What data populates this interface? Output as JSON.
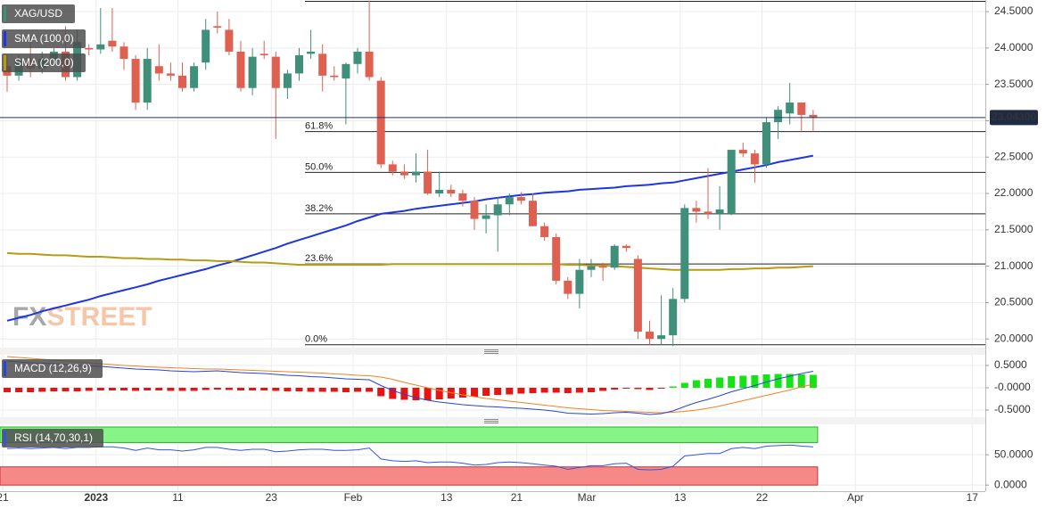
{
  "chart_data": {
    "type": "candlestick",
    "symbol": "XAG/USD",
    "watermark": [
      "FX",
      "STREET"
    ],
    "categories": [
      "21",
      null,
      null,
      null,
      null,
      null,
      null,
      null,
      "2023",
      null,
      null,
      null,
      null,
      null,
      null,
      "11",
      null,
      null,
      null,
      null,
      null,
      null,
      null,
      "23",
      null,
      null,
      null,
      null,
      null,
      null,
      "Feb",
      null,
      null,
      null,
      null,
      null,
      null,
      null,
      "13",
      null,
      null,
      null,
      null,
      null,
      "21",
      null,
      null,
      null,
      null,
      null,
      "Mar",
      null,
      null,
      null,
      null,
      null,
      null,
      null,
      "13",
      null,
      null,
      null,
      null,
      null,
      null,
      "22",
      null,
      null,
      null,
      null
    ],
    "future_categories": [
      null,
      null,
      null,
      "Apr",
      null,
      null,
      null,
      null,
      null,
      null,
      null,
      null,
      null,
      "17"
    ],
    "open": [
      23.75,
      23.62,
      23.83,
      23.72,
      23.85,
      23.95,
      23.6,
      24.0,
      23.98,
      24.1,
      24.02,
      23.85,
      23.25,
      23.75,
      23.65,
      23.62,
      23.45,
      23.8,
      24.3,
      24.25,
      23.95,
      23.45,
      23.92,
      23.88,
      23.45,
      23.65,
      23.92,
      23.92,
      23.62,
      23.58,
      23.78,
      23.95,
      23.55,
      22.4,
      22.3,
      22.25,
      22.3,
      22.0,
      22.05,
      22.0,
      21.9,
      21.65,
      21.7,
      21.85,
      21.95,
      21.9,
      21.55,
      21.4,
      20.8,
      20.62,
      20.95,
      21.0,
      20.98,
      21.28,
      21.1,
      20.1,
      20.0,
      20.05,
      20.55,
      21.8,
      21.75,
      21.72,
      21.72,
      22.6,
      22.55,
      22.4,
      22.98,
      23.1,
      23.25,
      23.08
    ],
    "high": [
      23.92,
      23.9,
      24.15,
      23.95,
      24.0,
      24.3,
      24.25,
      24.05,
      24.55,
      24.55,
      24.08,
      23.9,
      24.0,
      24.05,
      23.8,
      23.8,
      23.8,
      24.4,
      24.5,
      24.4,
      24.1,
      24.0,
      24.1,
      23.95,
      23.7,
      24.0,
      24.25,
      24.05,
      23.75,
      23.8,
      24.0,
      24.65,
      23.6,
      22.45,
      22.4,
      22.55,
      22.6,
      22.3,
      22.12,
      22.05,
      21.95,
      21.85,
      21.95,
      22.0,
      22.02,
      22.0,
      21.6,
      21.45,
      20.85,
      21.1,
      21.1,
      21.05,
      21.3,
      21.3,
      21.15,
      20.25,
      20.6,
      20.7,
      21.85,
      21.9,
      22.35,
      22.1,
      22.6,
      22.7,
      22.6,
      23.05,
      23.2,
      23.52,
      23.25,
      23.15
    ],
    "low": [
      23.4,
      23.55,
      23.6,
      23.65,
      23.8,
      23.55,
      23.55,
      23.9,
      23.92,
      23.95,
      23.7,
      23.15,
      23.15,
      23.55,
      23.55,
      23.4,
      23.4,
      23.7,
      24.2,
      23.9,
      23.4,
      23.35,
      23.85,
      22.75,
      23.3,
      23.55,
      23.85,
      23.4,
      23.55,
      22.95,
      23.65,
      23.55,
      22.35,
      22.25,
      22.2,
      22.15,
      21.98,
      21.95,
      21.95,
      21.82,
      21.5,
      21.45,
      21.2,
      21.7,
      21.85,
      21.55,
      21.35,
      20.75,
      20.55,
      20.42,
      20.85,
      20.8,
      20.95,
      21.2,
      20.0,
      19.92,
      19.92,
      19.9,
      20.5,
      21.6,
      21.65,
      21.5,
      21.7,
      22.5,
      22.15,
      22.35,
      22.75,
      22.95,
      22.85,
      22.85
    ],
    "close": [
      23.62,
      23.83,
      23.72,
      23.85,
      23.95,
      23.6,
      24.08,
      23.98,
      24.05,
      24.02,
      23.85,
      23.25,
      23.85,
      23.65,
      23.62,
      23.45,
      23.75,
      24.25,
      24.28,
      23.95,
      23.45,
      23.88,
      23.9,
      23.45,
      23.65,
      23.9,
      23.95,
      23.62,
      23.6,
      23.78,
      23.95,
      23.6,
      22.4,
      22.3,
      22.25,
      22.3,
      22.0,
      22.05,
      22.0,
      21.9,
      21.65,
      21.7,
      21.85,
      21.95,
      21.9,
      21.55,
      21.4,
      20.8,
      20.62,
      20.95,
      21.0,
      20.98,
      21.28,
      21.25,
      20.1,
      20.0,
      20.05,
      20.55,
      21.8,
      21.75,
      21.72,
      21.78,
      22.6,
      22.55,
      22.4,
      22.98,
      23.15,
      23.25,
      23.08,
      23.04
    ],
    "up_color": "#3f8f7a",
    "down_color": "#dd6050",
    "ylim": [
      19.88,
      24.66
    ],
    "yticks": [
      {
        "value": 24.5,
        "label": "24.5000"
      },
      {
        "value": 24.0,
        "label": "24.0000"
      },
      {
        "value": 23.5,
        "label": "23.5000"
      },
      {
        "value": 23.0,
        "label": "23.0000"
      },
      {
        "value": 22.5,
        "label": "22.5000"
      },
      {
        "value": 22.0,
        "label": "22.0000"
      },
      {
        "value": 21.5,
        "label": "21.5000"
      },
      {
        "value": 21.0,
        "label": "21.0000"
      },
      {
        "value": 20.5,
        "label": "20.5000"
      },
      {
        "value": 20.0,
        "label": "20.0000"
      }
    ],
    "grid": true,
    "last_price": {
      "value": 23.043,
      "label": "23.04300"
    },
    "series": [
      {
        "name": "SMA (100,0)",
        "color": "#1d36e2",
        "values": [
          20.25,
          20.29,
          20.33,
          20.38,
          20.42,
          20.46,
          20.5,
          20.54,
          20.59,
          20.63,
          20.67,
          20.71,
          20.75,
          20.8,
          20.84,
          20.88,
          20.92,
          20.96,
          21.01,
          21.05,
          21.1,
          21.15,
          21.2,
          21.25,
          21.31,
          21.36,
          21.41,
          21.46,
          21.51,
          21.56,
          21.62,
          21.67,
          21.72,
          21.74,
          21.76,
          21.79,
          21.81,
          21.83,
          21.85,
          21.87,
          21.89,
          21.92,
          21.94,
          21.96,
          21.98,
          21.99,
          22.01,
          22.02,
          22.03,
          22.05,
          22.06,
          22.07,
          22.08,
          22.1,
          22.11,
          22.12,
          22.14,
          22.15,
          22.18,
          22.21,
          22.24,
          22.27,
          22.3,
          22.33,
          22.36,
          22.39,
          22.43,
          22.46,
          22.49,
          22.52
        ]
      },
      {
        "name": "SMA (200,0)",
        "color": "#b59c14",
        "values": [
          21.18,
          21.17,
          21.17,
          21.16,
          21.15,
          21.15,
          21.14,
          21.13,
          21.13,
          21.12,
          21.11,
          21.11,
          21.1,
          21.1,
          21.09,
          21.09,
          21.08,
          21.08,
          21.07,
          21.07,
          21.06,
          21.05,
          21.05,
          21.04,
          21.03,
          21.02,
          21.02,
          21.02,
          21.02,
          21.02,
          21.02,
          21.02,
          21.02,
          21.03,
          21.03,
          21.03,
          21.03,
          21.03,
          21.03,
          21.03,
          21.03,
          21.03,
          21.03,
          21.03,
          21.03,
          21.03,
          21.03,
          21.03,
          21.02,
          21.02,
          21.01,
          21.01,
          21.0,
          20.99,
          20.98,
          20.97,
          20.96,
          20.95,
          20.95,
          20.95,
          20.95,
          20.95,
          20.96,
          20.96,
          20.97,
          20.97,
          20.98,
          20.98,
          20.99,
          21.0
        ]
      }
    ],
    "fibonacci": [
      {
        "label": "61.8%",
        "value": 22.85
      },
      {
        "label": "50.0%",
        "value": 22.29
      },
      {
        "label": "38.2%",
        "value": 21.72
      },
      {
        "label": "23.6%",
        "value": 21.03
      },
      {
        "label": "0.0%",
        "value": 19.92
      }
    ],
    "macd": {
      "name": "MACD (12,26,9)",
      "ylim": [
        -0.66,
        0.74
      ],
      "yticks": [
        {
          "value": 0.5,
          "label": "0.5000"
        },
        {
          "value": 0,
          "label": "-0.0000"
        },
        {
          "value": -0.5,
          "label": "-0.5000"
        }
      ],
      "macd_line": {
        "color": "#2444dd",
        "values": [
          0.6,
          0.58,
          0.56,
          0.55,
          0.54,
          0.52,
          0.5,
          0.49,
          0.48,
          0.46,
          0.44,
          0.42,
          0.41,
          0.4,
          0.38,
          0.37,
          0.36,
          0.37,
          0.38,
          0.36,
          0.34,
          0.33,
          0.32,
          0.3,
          0.28,
          0.27,
          0.25,
          0.24,
          0.22,
          0.2,
          0.19,
          0.18,
          0.05,
          -0.06,
          -0.15,
          -0.22,
          -0.28,
          -0.32,
          -0.35,
          -0.38,
          -0.4,
          -0.42,
          -0.43,
          -0.45,
          -0.46,
          -0.48,
          -0.5,
          -0.53,
          -0.57,
          -0.58,
          -0.59,
          -0.58,
          -0.56,
          -0.55,
          -0.57,
          -0.6,
          -0.58,
          -0.52,
          -0.42,
          -0.33,
          -0.26,
          -0.18,
          -0.09,
          -0.02,
          0.05,
          0.13,
          0.2,
          0.26,
          0.32,
          0.37
        ]
      },
      "signal": {
        "color": "#f08226",
        "values": [
          0.7,
          0.68,
          0.66,
          0.64,
          0.62,
          0.6,
          0.58,
          0.56,
          0.54,
          0.52,
          0.5,
          0.49,
          0.47,
          0.46,
          0.45,
          0.44,
          0.43,
          0.42,
          0.42,
          0.41,
          0.4,
          0.39,
          0.38,
          0.37,
          0.36,
          0.35,
          0.34,
          0.33,
          0.31,
          0.3,
          0.28,
          0.27,
          0.24,
          0.19,
          0.12,
          0.06,
          0.0,
          -0.06,
          -0.11,
          -0.16,
          -0.2,
          -0.24,
          -0.27,
          -0.3,
          -0.33,
          -0.36,
          -0.39,
          -0.42,
          -0.45,
          -0.47,
          -0.49,
          -0.51,
          -0.52,
          -0.53,
          -0.54,
          -0.55,
          -0.56,
          -0.55,
          -0.53,
          -0.5,
          -0.46,
          -0.41,
          -0.35,
          -0.29,
          -0.23,
          -0.17,
          -0.11,
          -0.05,
          0.02,
          0.08
        ]
      },
      "histogram": {
        "up_color": "#16e316",
        "down_color": "#e81414",
        "values": [
          -0.1,
          -0.1,
          -0.1,
          -0.09,
          -0.08,
          -0.08,
          -0.08,
          -0.07,
          -0.06,
          -0.06,
          -0.06,
          -0.07,
          -0.06,
          -0.06,
          -0.07,
          -0.07,
          -0.07,
          -0.05,
          -0.04,
          -0.05,
          -0.06,
          -0.06,
          -0.06,
          -0.07,
          -0.08,
          -0.08,
          -0.09,
          -0.09,
          -0.09,
          -0.1,
          -0.09,
          -0.09,
          -0.19,
          -0.25,
          -0.27,
          -0.28,
          -0.28,
          -0.26,
          -0.24,
          -0.22,
          -0.2,
          -0.18,
          -0.16,
          -0.15,
          -0.13,
          -0.12,
          -0.11,
          -0.11,
          -0.12,
          -0.11,
          -0.1,
          -0.07,
          -0.04,
          -0.02,
          -0.03,
          -0.05,
          -0.02,
          0.03,
          0.11,
          0.17,
          0.2,
          0.23,
          0.26,
          0.27,
          0.28,
          0.3,
          0.31,
          0.31,
          0.3,
          0.29
        ]
      }
    },
    "rsi": {
      "name": "RSI (14,70,30,1)",
      "ylim": [
        -10,
        100
      ],
      "yticks": [
        {
          "value": 50,
          "label": "50.0000"
        },
        {
          "value": 0,
          "label": "0.0000"
        }
      ],
      "upper": 70,
      "lower": 30,
      "upper_color": "#86f486",
      "lower_color": "#f78888",
      "color": "#3355dd",
      "values": [
        60,
        61,
        60,
        61,
        62,
        60,
        62,
        62,
        63,
        63,
        61,
        57,
        61,
        58,
        58,
        56,
        58,
        62,
        62,
        59,
        57,
        59,
        59,
        55,
        56,
        58,
        59,
        59,
        57,
        57,
        58,
        61,
        43,
        40,
        39,
        40,
        37,
        38,
        38,
        36,
        33,
        34,
        37,
        38,
        37,
        35,
        33,
        31,
        26,
        29,
        32,
        32,
        35,
        36,
        26,
        25,
        26,
        31,
        48,
        50,
        52,
        52,
        60,
        62,
        60,
        64,
        65,
        66,
        64,
        63
      ]
    }
  }
}
